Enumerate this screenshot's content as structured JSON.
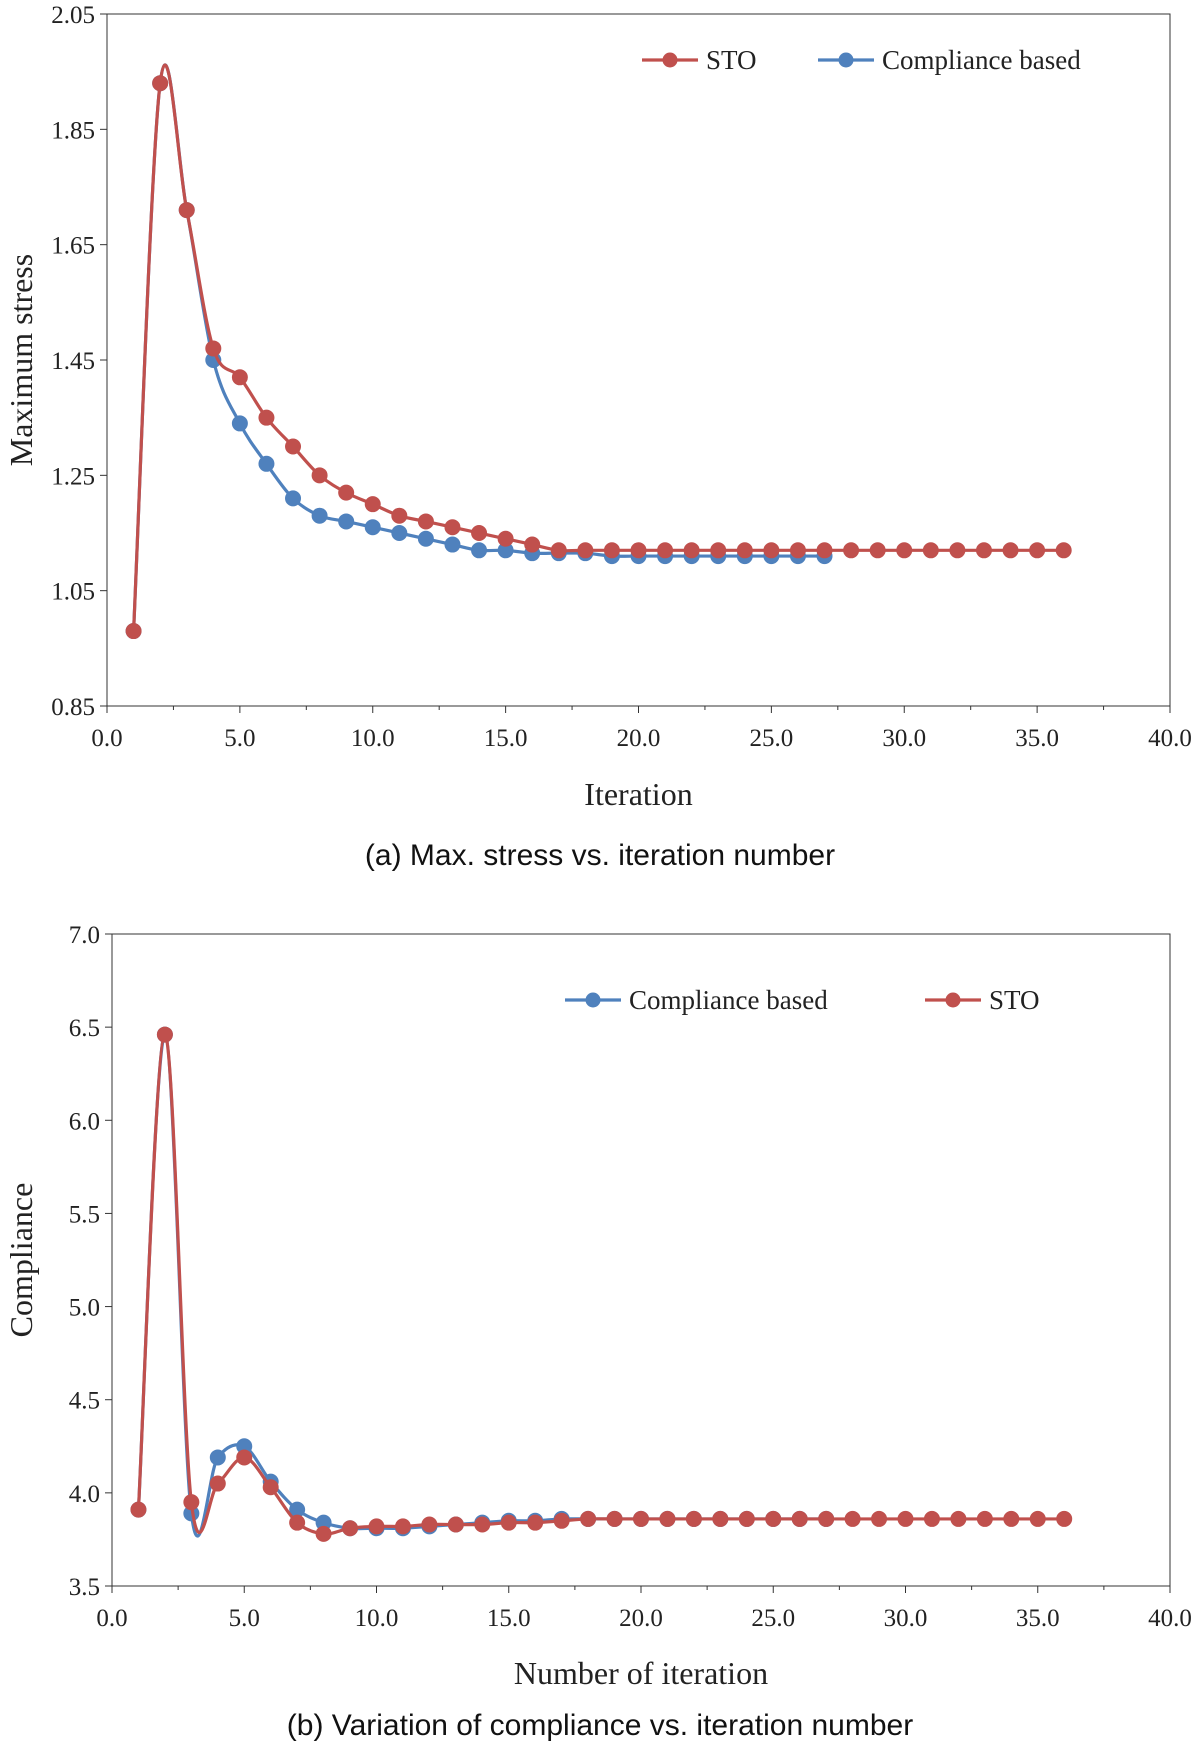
{
  "chart_data": [
    {
      "type": "line",
      "caption": "(a) Max. stress vs. iteration number",
      "xlabel": "Iteration",
      "ylabel": "Maximum stress",
      "xlim": [
        0,
        40
      ],
      "ylim": [
        0.85,
        2.05
      ],
      "xticks": [
        "0.0",
        "5.0",
        "10.0",
        "15.0",
        "20.0",
        "25.0",
        "30.0",
        "35.0",
        "40.0"
      ],
      "yticks": [
        "0.85",
        "1.05",
        "1.25",
        "1.45",
        "1.65",
        "1.85",
        "2.05"
      ],
      "legend_position": "top-right",
      "grid": false,
      "series": [
        {
          "name": "STO",
          "color": "#c0504d",
          "x": [
            1,
            2,
            3,
            4,
            5,
            6,
            7,
            8,
            9,
            10,
            11,
            12,
            13,
            14,
            15,
            16,
            17,
            18,
            19,
            20,
            21,
            22,
            23,
            24,
            25,
            26,
            27,
            28,
            29,
            30,
            31,
            32,
            33,
            34,
            35,
            36
          ],
          "y": [
            0.98,
            1.93,
            1.71,
            1.47,
            1.42,
            1.35,
            1.3,
            1.25,
            1.22,
            1.2,
            1.18,
            1.17,
            1.16,
            1.15,
            1.14,
            1.13,
            1.12,
            1.12,
            1.12,
            1.12,
            1.12,
            1.12,
            1.12,
            1.12,
            1.12,
            1.12,
            1.12,
            1.12,
            1.12,
            1.12,
            1.12,
            1.12,
            1.12,
            1.12,
            1.12,
            1.12
          ]
        },
        {
          "name": "Compliance based",
          "color": "#4f81bd",
          "x": [
            1,
            2,
            3,
            4,
            5,
            6,
            7,
            8,
            9,
            10,
            11,
            12,
            13,
            14,
            15,
            16,
            17,
            18,
            19,
            20,
            21,
            22,
            23,
            24,
            25,
            26,
            27
          ],
          "y": [
            0.98,
            1.93,
            1.71,
            1.45,
            1.34,
            1.27,
            1.21,
            1.18,
            1.17,
            1.16,
            1.15,
            1.14,
            1.13,
            1.12,
            1.12,
            1.115,
            1.115,
            1.115,
            1.11,
            1.11,
            1.11,
            1.11,
            1.11,
            1.11,
            1.11,
            1.11,
            1.11
          ]
        }
      ]
    },
    {
      "type": "line",
      "caption": "(b) Variation of compliance vs. iteration number",
      "xlabel": "Number of iteration",
      "ylabel": "Compliance",
      "xlim": [
        0,
        40
      ],
      "ylim": [
        3.5,
        7.0
      ],
      "xticks": [
        "0.0",
        "5.0",
        "10.0",
        "15.0",
        "20.0",
        "25.0",
        "30.0",
        "35.0",
        "40.0"
      ],
      "yticks": [
        "3.5",
        "4.0",
        "4.5",
        "5.0",
        "5.5",
        "6.0",
        "6.5",
        "7.0"
      ],
      "legend_position": "top-right",
      "grid": false,
      "series": [
        {
          "name": "Compliance based",
          "color": "#4f81bd",
          "x": [
            1,
            2,
            3,
            4,
            5,
            6,
            7,
            8,
            9,
            10,
            11,
            12,
            13,
            14,
            15,
            16,
            17,
            18,
            19,
            20,
            21,
            22,
            23,
            24,
            25,
            26,
            27
          ],
          "y": [
            3.91,
            6.46,
            3.89,
            4.19,
            4.25,
            4.06,
            3.91,
            3.84,
            3.81,
            3.81,
            3.81,
            3.82,
            3.83,
            3.84,
            3.85,
            3.85,
            3.86,
            3.86,
            3.86,
            3.86,
            3.86,
            3.86,
            3.86,
            3.86,
            3.86,
            3.86,
            3.86
          ]
        },
        {
          "name": "STO",
          "color": "#c0504d",
          "x": [
            1,
            2,
            3,
            4,
            5,
            6,
            7,
            8,
            9,
            10,
            11,
            12,
            13,
            14,
            15,
            16,
            17,
            18,
            19,
            20,
            21,
            22,
            23,
            24,
            25,
            26,
            27,
            28,
            29,
            30,
            31,
            32,
            33,
            34,
            35,
            36
          ],
          "y": [
            3.91,
            6.46,
            3.95,
            4.05,
            4.19,
            4.03,
            3.84,
            3.78,
            3.81,
            3.82,
            3.82,
            3.83,
            3.83,
            3.83,
            3.84,
            3.84,
            3.85,
            3.86,
            3.86,
            3.86,
            3.86,
            3.86,
            3.86,
            3.86,
            3.86,
            3.86,
            3.86,
            3.86,
            3.86,
            3.86,
            3.86,
            3.86,
            3.86,
            3.86,
            3.86,
            3.86
          ]
        }
      ]
    }
  ]
}
